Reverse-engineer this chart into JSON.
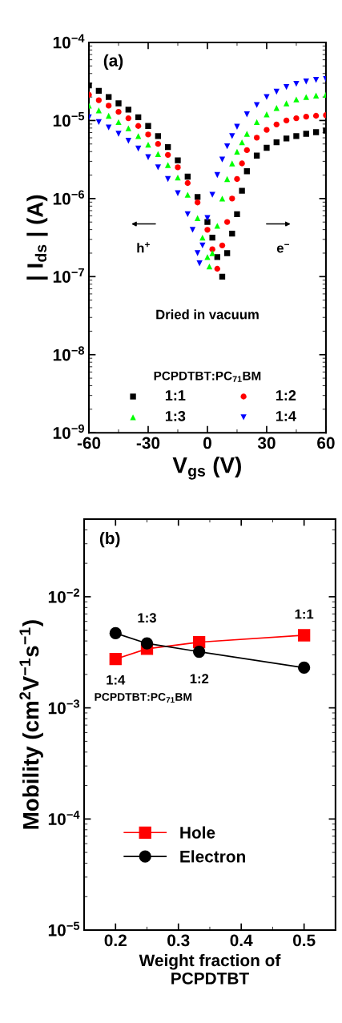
{
  "chart_data": [
    {
      "type": "scatter",
      "xlabel": "V$_{gs}$ (V)",
      "ylabel": "| I$_{ds}$ | (A)",
      "log": "y",
      "xlim": [
        -60,
        60
      ],
      "xticks": [
        -60,
        -30,
        0,
        30,
        60
      ],
      "ylim": [
        1e-09,
        0.0001
      ],
      "yticks": [
        {
          "value": 1e-09,
          "label": "10$^{−9}$"
        },
        {
          "value": 1e-08,
          "label": "10$^{−8}$"
        },
        {
          "value": 1e-07,
          "label": "10$^{−7}$"
        },
        {
          "value": 1e-06,
          "label": "10$^{−6}$"
        },
        {
          "value": 1e-05,
          "label": "10$^{−5}$"
        },
        {
          "value": 0.0001,
          "label": "10$^{−4}$"
        }
      ],
      "grid": false,
      "legend": "bottom",
      "legend_title": "PCPDTBT:PC$_{71}$BM",
      "annotations": [
        "(a)",
        "Dried in vacuum",
        "h$^{+}$",
        "e$^{−}$"
      ],
      "series": [
        {
          "name": "1:1",
          "color": "#000000",
          "marker": "square",
          "x": [
            -60,
            -55,
            -50,
            -45,
            -40,
            -35,
            -30,
            -25,
            -20,
            -15,
            -10,
            -5,
            0,
            2.5,
            5,
            7.5,
            10,
            12.5,
            15,
            17.5,
            20,
            25,
            30,
            35,
            40,
            45,
            50,
            55,
            60
          ],
          "values": [
            2.82e-05,
            2.4e-05,
            2e-05,
            1.66e-05,
            1.38e-05,
            1.1e-05,
            8.51e-06,
            6.31e-06,
            4.57e-06,
            3.09e-06,
            1.91e-06,
            1.05e-06,
            5.01e-07,
            3.16e-07,
            1.78e-07,
            1e-07,
            2e-07,
            3.55e-07,
            6.31e-07,
            1.26e-06,
            2.24e-06,
            3.55e-06,
            4.47e-06,
            5.25e-06,
            5.89e-06,
            6.31e-06,
            6.76e-06,
            7.08e-06,
            7.41e-06
          ]
        },
        {
          "name": "1:2",
          "color": "#ff0000",
          "marker": "circle",
          "x": [
            -60,
            -55,
            -50,
            -45,
            -40,
            -35,
            -30,
            -25,
            -20,
            -15,
            -10,
            -5,
            0,
            2.5,
            5,
            7.5,
            10,
            12.5,
            15,
            17.5,
            20,
            25,
            30,
            35,
            40,
            45,
            50,
            55,
            60
          ],
          "values": [
            2.14e-05,
            1.82e-05,
            1.55e-05,
            1.29e-05,
            1.07e-05,
            8.51e-06,
            6.61e-06,
            5.01e-06,
            3.63e-06,
            2.51e-06,
            1.58e-06,
            8.91e-07,
            3.98e-07,
            2.24e-07,
            1.26e-07,
            2.51e-07,
            5.01e-07,
            1e-06,
            1.78e-06,
            2.82e-06,
            4.17e-06,
            6.03e-06,
            7.59e-06,
            8.91e-06,
            1e-05,
            1.07e-05,
            1.12e-05,
            1.15e-05,
            1.17e-05
          ]
        },
        {
          "name": "1:3",
          "color": "#00ff00",
          "marker": "triangle",
          "x": [
            -60,
            -55,
            -50,
            -45,
            -40,
            -35,
            -30,
            -25,
            -20,
            -15,
            -10,
            -5,
            -2.5,
            0,
            1,
            2.5,
            5,
            7.5,
            10,
            12.5,
            15,
            17.5,
            20,
            25,
            30,
            35,
            40,
            45,
            50,
            55,
            60
          ],
          "values": [
            1.55e-05,
            1.35e-05,
            1.15e-05,
            9.55e-06,
            7.94e-06,
            6.31e-06,
            4.9e-06,
            3.72e-06,
            2.69e-06,
            1.86e-06,
            1.12e-06,
            5.62e-07,
            3.16e-07,
            1.78e-07,
            1.35e-07,
            2e-07,
            4.47e-07,
            1e-06,
            1.78e-06,
            2.82e-06,
            3.98e-06,
            5.25e-06,
            6.76e-06,
            9.55e-06,
            1.2e-05,
            1.45e-05,
            1.66e-05,
            1.86e-05,
            2e-05,
            2.09e-05,
            2.14e-05
          ]
        },
        {
          "name": "1:4",
          "color": "#0000ff",
          "marker": "triangle-down",
          "x": [
            -60,
            -55,
            -50,
            -45,
            -40,
            -35,
            -30,
            -25,
            -20,
            -15,
            -10,
            -7.5,
            -5,
            -4,
            -2.5,
            0,
            2.5,
            5,
            7.5,
            10,
            12.5,
            15,
            20,
            25,
            30,
            35,
            40,
            45,
            50,
            55,
            60
          ],
          "values": [
            1.1e-05,
            9.55e-06,
            8.13e-06,
            6.76e-06,
            5.5e-06,
            4.37e-06,
            3.39e-06,
            2.51e-06,
            1.78e-06,
            1.17e-06,
            6.31e-07,
            3.98e-07,
            2e-07,
            1.48e-07,
            2.51e-07,
            5.62e-07,
            1.12e-06,
            2e-06,
            3.16e-06,
            4.68e-06,
            6.31e-06,
            8.32e-06,
            1.2e-05,
            1.58e-05,
            2e-05,
            2.34e-05,
            2.69e-05,
            2.95e-05,
            3.16e-05,
            3.31e-05,
            3.39e-05
          ]
        }
      ]
    },
    {
      "type": "line",
      "xlabel": "Weight fraction of\nPCPDTBT",
      "ylabel": "Mobility (cm$^{2}$V$^{−1}$s$^{−1}$)",
      "log": "y",
      "xlim": [
        0.15,
        0.55
      ],
      "xticks": [
        0.2,
        0.3,
        0.4,
        0.5
      ],
      "ylim": [
        1e-05,
        0.05
      ],
      "yticks": [
        {
          "value": 1e-05,
          "label": "10$^{−5}$"
        },
        {
          "value": 0.0001,
          "label": "10$^{−4}$"
        },
        {
          "value": 0.001,
          "label": "10$^{−3}$"
        },
        {
          "value": 0.01,
          "label": "10$^{−2}$"
        }
      ],
      "grid": false,
      "legend": "bottom left",
      "line_style": "solid",
      "annotations": [
        "(b)",
        "PCPDTBT:PC$_{71}$BM",
        "1:4",
        "1:3",
        "1:2",
        "1:1"
      ],
      "series": [
        {
          "name": "Hole",
          "color": "#ff0000",
          "marker": "square",
          "x": [
            0.2,
            0.25,
            0.333,
            0.5
          ],
          "values": [
            0.00275,
            0.0034,
            0.0039,
            0.0045
          ]
        },
        {
          "name": "Electron",
          "color": "#000000",
          "marker": "circle",
          "x": [
            0.2,
            0.25,
            0.333,
            0.5
          ],
          "values": [
            0.0047,
            0.0038,
            0.0032,
            0.0023
          ]
        }
      ]
    }
  ]
}
